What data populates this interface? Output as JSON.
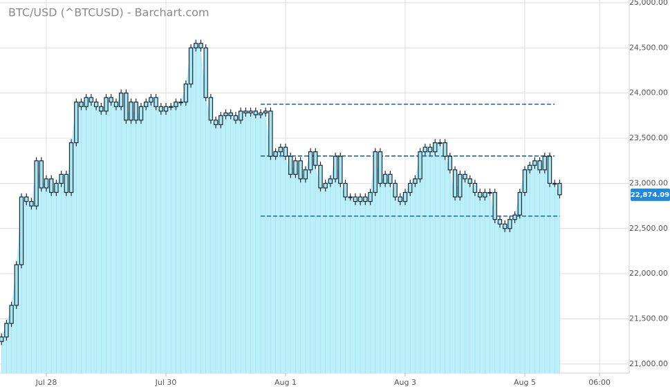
{
  "chart_data": {
    "type": "candlestick",
    "title": "BTC/USD (^BTCUSD) - Barchart.com",
    "x": [
      "Jul 27 06:00",
      "Jul 27 08:00",
      "Jul 27 10:00",
      "Jul 27 12:00",
      "Jul 27 14:00",
      "Jul 27 16:00",
      "Jul 27 18:00",
      "Jul 27 20:00",
      "Jul 27 22:00",
      "Jul 28 00:00",
      "Jul 28 02:00",
      "Jul 28 04:00",
      "Jul 28 06:00",
      "Jul 28 08:00",
      "Jul 28 10:00",
      "Jul 28 12:00",
      "Jul 28 14:00",
      "Jul 28 16:00",
      "Jul 28 18:00",
      "Jul 28 20:00",
      "Jul 28 22:00",
      "Jul 29 00:00",
      "Jul 29 02:00",
      "Jul 29 04:00",
      "Jul 29 06:00",
      "Jul 29 08:00",
      "Jul 29 10:00",
      "Jul 29 12:00",
      "Jul 29 14:00",
      "Jul 29 16:00",
      "Jul 29 18:00",
      "Jul 29 20:00",
      "Jul 29 22:00",
      "Jul 30 00:00",
      "Jul 30 02:00",
      "Jul 30 04:00",
      "Jul 30 06:00",
      "Jul 30 08:00",
      "Jul 30 10:00",
      "Jul 30 12:00",
      "Jul 30 14:00",
      "Jul 30 16:00",
      "Jul 30 18:00",
      "Jul 30 20:00",
      "Jul 30 22:00",
      "Jul 31 00:00",
      "Jul 31 02:00",
      "Jul 31 04:00",
      "Jul 31 06:00",
      "Jul 31 08:00",
      "Jul 31 10:00",
      "Jul 31 12:00",
      "Jul 31 14:00",
      "Jul 31 16:00",
      "Jul 31 18:00",
      "Jul 31 20:00",
      "Jul 31 22:00",
      "Aug 1 00:00",
      "Aug 1 02:00",
      "Aug 1 04:00",
      "Aug 1 06:00",
      "Aug 1 08:00",
      "Aug 1 10:00",
      "Aug 1 12:00",
      "Aug 1 14:00",
      "Aug 1 16:00",
      "Aug 1 18:00",
      "Aug 1 20:00",
      "Aug 1 22:00",
      "Aug 2 00:00",
      "Aug 2 02:00",
      "Aug 2 04:00",
      "Aug 2 06:00",
      "Aug 2 08:00",
      "Aug 2 10:00",
      "Aug 2 12:00",
      "Aug 2 14:00",
      "Aug 2 16:00",
      "Aug 2 18:00",
      "Aug 2 20:00",
      "Aug 2 22:00",
      "Aug 3 00:00",
      "Aug 3 02:00",
      "Aug 3 04:00",
      "Aug 3 06:00",
      "Aug 3 08:00",
      "Aug 3 10:00",
      "Aug 3 12:00",
      "Aug 3 14:00",
      "Aug 3 16:00",
      "Aug 3 18:00",
      "Aug 3 20:00",
      "Aug 3 22:00",
      "Aug 4 00:00",
      "Aug 4 02:00",
      "Aug 4 04:00",
      "Aug 4 06:00",
      "Aug 4 08:00",
      "Aug 4 10:00",
      "Aug 4 12:00",
      "Aug 4 14:00",
      "Aug 4 16:00",
      "Aug 4 18:00",
      "Aug 4 20:00",
      "Aug 4 22:00",
      "Aug 5 00:00",
      "Aug 5 02:00",
      "Aug 5 04:00",
      "Aug 5 06:00",
      "Aug 5 08:00",
      "Aug 5 10:00",
      "Aug 5 12:00",
      "Aug 5 14:00"
    ],
    "open": [
      21250,
      21300,
      21450,
      21650,
      22100,
      22850,
      22800,
      22750,
      23250,
      22950,
      23050,
      22900,
      23000,
      23100,
      22900,
      23450,
      23900,
      23850,
      23950,
      23900,
      23850,
      23800,
      23950,
      23900,
      23850,
      24000,
      23700,
      23900,
      23700,
      23850,
      23900,
      23950,
      23850,
      23800,
      23850,
      23850,
      23900,
      23900,
      24100,
      24500,
      24550,
      24500,
      23950,
      23700,
      23650,
      23750,
      23780,
      23750,
      23700,
      23800,
      23780,
      23800,
      23760,
      23780,
      23800,
      23300,
      23350,
      23400,
      23300,
      23100,
      23250,
      23050,
      23150,
      23350,
      23200,
      22950,
      23000,
      23050,
      23300,
      23000,
      22850,
      22850,
      22800,
      22850,
      22800,
      22900,
      23350,
      23000,
      23100,
      23000,
      22850,
      22800,
      22900,
      23000,
      23050,
      23350,
      23400,
      23350,
      23450,
      23450,
      23300,
      23150,
      22850,
      23100,
      23050,
      23000,
      22900,
      22850,
      22900,
      22900,
      22600,
      22550,
      22500,
      22600,
      22650,
      22900,
      23150,
      23200,
      23250,
      23150,
      23300,
      23000,
      23000
    ],
    "high": [
      21340,
      21490,
      21690,
      22140,
      22890,
      22890,
      22840,
      23290,
      23290,
      23090,
      23090,
      23040,
      23140,
      23140,
      23490,
      23940,
      23940,
      23990,
      23990,
      23940,
      23890,
      23990,
      23990,
      23940,
      24040,
      24040,
      23940,
      23940,
      23890,
      23940,
      23990,
      23990,
      23890,
      23890,
      23890,
      23940,
      23940,
      24140,
      24540,
      24590,
      24590,
      24540,
      23990,
      23740,
      23790,
      23820,
      23820,
      23790,
      23840,
      23840,
      23840,
      23840,
      23820,
      23840,
      23840,
      23390,
      23440,
      23440,
      23340,
      23290,
      23290,
      23190,
      23390,
      23390,
      23240,
      23040,
      23090,
      23340,
      23340,
      23040,
      22890,
      22890,
      22890,
      22890,
      22940,
      23390,
      23390,
      23140,
      23140,
      23040,
      22890,
      22940,
      23040,
      23090,
      23390,
      23440,
      23440,
      23490,
      23490,
      23490,
      23340,
      23190,
      23140,
      23140,
      23090,
      23040,
      22940,
      22940,
      22940,
      22940,
      22640,
      22590,
      22640,
      22690,
      22940,
      23190,
      23240,
      23290,
      23290,
      23340,
      23340,
      23040,
      23040
    ],
    "low": [
      21210,
      21260,
      21410,
      21610,
      22060,
      22760,
      22710,
      22710,
      22910,
      22910,
      22860,
      22860,
      22960,
      22860,
      22860,
      23410,
      23810,
      23810,
      23860,
      23810,
      23760,
      23760,
      23860,
      23810,
      23810,
      23660,
      23660,
      23660,
      23660,
      23810,
      23860,
      23810,
      23760,
      23760,
      23810,
      23810,
      23860,
      23860,
      24060,
      24460,
      24460,
      23910,
      23660,
      23610,
      23610,
      23710,
      23710,
      23660,
      23660,
      23740,
      23740,
      23720,
      23720,
      23740,
      23260,
      23260,
      23310,
      23260,
      23060,
      23060,
      23010,
      23010,
      23110,
      23160,
      22910,
      22910,
      22960,
      23010,
      22960,
      22810,
      22810,
      22760,
      22760,
      22760,
      22760,
      22860,
      22960,
      22960,
      22960,
      22810,
      22760,
      22760,
      22860,
      22960,
      23010,
      23310,
      23310,
      23310,
      23410,
      23260,
      23110,
      22810,
      22810,
      23010,
      22960,
      22860,
      22810,
      22810,
      22860,
      22560,
      22510,
      22460,
      22460,
      22560,
      22610,
      22860,
      23110,
      23160,
      23110,
      23110,
      22960,
      22960,
      22834.09
    ],
    "close": [
      21300,
      21450,
      21650,
      22100,
      22850,
      22800,
      22750,
      23250,
      22950,
      23050,
      22900,
      23000,
      23100,
      22900,
      23450,
      23900,
      23850,
      23950,
      23900,
      23850,
      23800,
      23950,
      23900,
      23850,
      24000,
      23700,
      23900,
      23700,
      23850,
      23900,
      23950,
      23850,
      23800,
      23850,
      23850,
      23900,
      23900,
      24100,
      24500,
      24550,
      24500,
      23950,
      23700,
      23650,
      23750,
      23780,
      23750,
      23700,
      23800,
      23780,
      23800,
      23760,
      23780,
      23800,
      23300,
      23350,
      23400,
      23300,
      23100,
      23250,
      23050,
      23150,
      23350,
      23200,
      22950,
      23000,
      23050,
      23300,
      23000,
      22850,
      22850,
      22800,
      22850,
      22800,
      22900,
      23350,
      23000,
      23100,
      23000,
      22850,
      22800,
      22900,
      23000,
      23050,
      23350,
      23400,
      23350,
      23450,
      23450,
      23300,
      23150,
      22850,
      23100,
      23050,
      23000,
      22900,
      22850,
      22900,
      22900,
      22600,
      22550,
      22500,
      22600,
      22650,
      22900,
      23150,
      23200,
      23250,
      23150,
      23300,
      23000,
      23000,
      22874.09
    ],
    "last_label": "22,874.09",
    "candle_color": "#a6e6f2",
    "area_color": "#bdeffa",
    "line_color": "#1565c0",
    "lines": [
      {
        "value": 23876,
        "x0": "Jul 31 14:00",
        "x1": "Aug 5 12:00"
      },
      {
        "value": 23303,
        "x0": "Jul 31 14:00",
        "x1": "Aug 5 12:00"
      },
      {
        "value": 22638,
        "x0": "Jul 31 14:00",
        "x1": "Aug 5 14:00"
      }
    ],
    "xlim": [
      "Jul 27 05:24",
      "Aug 6 17:54"
    ],
    "xticks": [
      {
        "value": "Jul 28 00:00",
        "label": "Jul 28"
      },
      {
        "value": "Jul 30 00:00",
        "label": "Jul 30"
      },
      {
        "value": "Aug 1 00:00",
        "label": "Aug 1"
      },
      {
        "value": "Aug 3 00:00",
        "label": "Aug 3"
      },
      {
        "value": "Aug 5 00:00",
        "label": "Aug 5"
      },
      {
        "value": "Aug 6 06:00",
        "label": "06:00"
      }
    ],
    "ylim": [
      20900,
      25030
    ],
    "yticks": [
      {
        "value": 21000,
        "label": "21,000.00"
      },
      {
        "value": 21500,
        "label": "21,500.00"
      },
      {
        "value": 22000,
        "label": "22,000.00"
      },
      {
        "value": 22500,
        "label": "22,500.00"
      },
      {
        "value": 23000,
        "label": "23,000.00"
      },
      {
        "value": 23500,
        "label": "23,500.00"
      },
      {
        "value": 24000,
        "label": "24,000.00"
      },
      {
        "value": 24500,
        "label": "24,500.00"
      },
      {
        "value": 25000,
        "label": "25,000.00"
      }
    ],
    "grid": true
  }
}
